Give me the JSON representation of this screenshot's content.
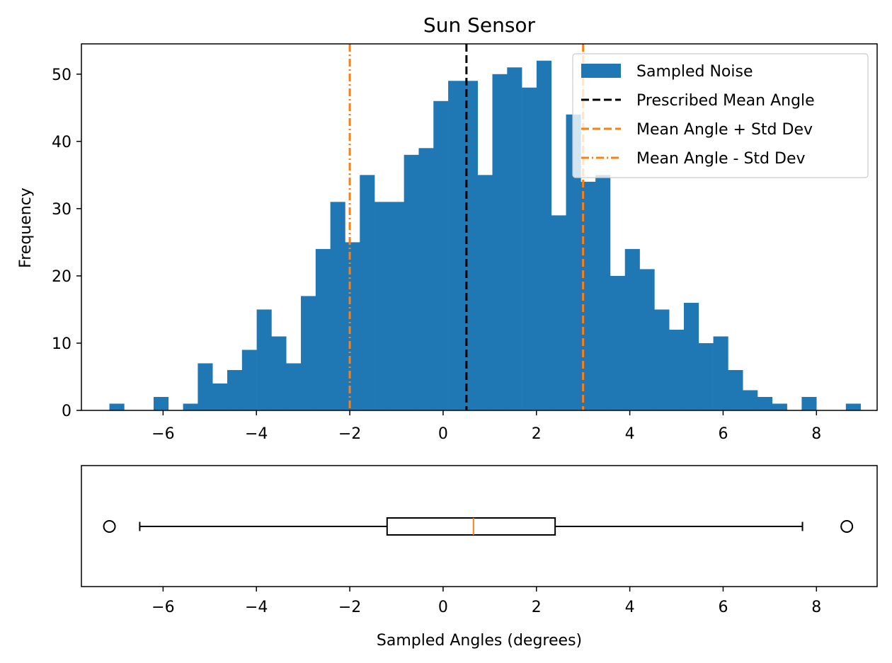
{
  "chart_data": [
    {
      "type": "histogram",
      "title": "Sun Sensor",
      "xlabel": "",
      "ylabel": "Frequency",
      "xlim": [
        -7.75,
        9.3
      ],
      "ylim": [
        0,
        54.5
      ],
      "x_ticks": [
        -6,
        -4,
        -2,
        0,
        2,
        4,
        6,
        8
      ],
      "x_tick_labels": [
        "−6",
        "−4",
        "−2",
        "0",
        "2",
        "4",
        "6",
        "8"
      ],
      "y_ticks": [
        0,
        10,
        20,
        30,
        40,
        50
      ],
      "y_tick_labels": [
        "0",
        "10",
        "20",
        "30",
        "40",
        "50"
      ],
      "grid": false,
      "legend_position": "top-right",
      "series": [
        {
          "name": "Sampled Noise",
          "kind": "histogram",
          "color": "#1f77b4",
          "bin_start": -7.15,
          "bin_width": 0.3156,
          "values": [
            1,
            0,
            0,
            2,
            0,
            1,
            7,
            4,
            6,
            9,
            15,
            11,
            7,
            17,
            24,
            31,
            25,
            35,
            31,
            31,
            38,
            39,
            46,
            49,
            49,
            35,
            50,
            51,
            48,
            52,
            29,
            44,
            34,
            35,
            20,
            24,
            21,
            15,
            12,
            16,
            10,
            11,
            6,
            3,
            2,
            1,
            0,
            2,
            0,
            0,
            1
          ]
        },
        {
          "name": "Prescribed Mean Angle",
          "kind": "vline",
          "x": 0.5,
          "color": "#000000",
          "dash": "dashed"
        },
        {
          "name": "Mean Angle + Std Dev",
          "kind": "vline",
          "x": 3.0,
          "color": "#ff7f0e",
          "dash": "dashed"
        },
        {
          "name": "Mean Angle - Std Dev",
          "kind": "vline",
          "x": -2.0,
          "color": "#ff7f0e",
          "dash": "dashdot"
        }
      ]
    },
    {
      "type": "box",
      "title": "",
      "xlabel": "Sampled Angles (degrees)",
      "ylabel": "",
      "xlim": [
        -7.75,
        9.3
      ],
      "x_ticks": [
        -6,
        -4,
        -2,
        0,
        2,
        4,
        6,
        8
      ],
      "x_tick_labels": [
        "−6",
        "−4",
        "−2",
        "0",
        "2",
        "4",
        "6",
        "8"
      ],
      "box": {
        "whisker_low": -6.5,
        "q1": -1.2,
        "median": 0.65,
        "q3": 2.4,
        "whisker_high": 7.7,
        "outliers": [
          -7.15,
          8.65
        ],
        "median_color": "#ff7f0e"
      }
    }
  ]
}
